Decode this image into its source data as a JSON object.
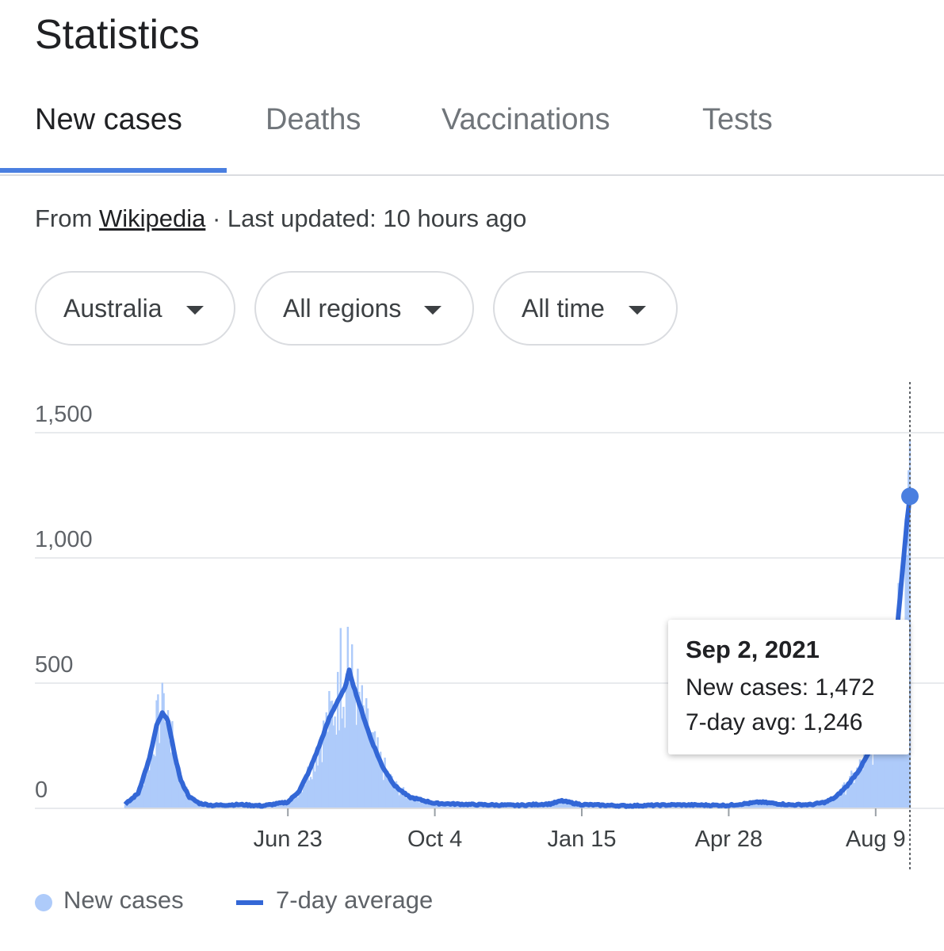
{
  "page": {
    "title": "Statistics"
  },
  "tabs": [
    {
      "label": "New cases",
      "active": true
    },
    {
      "label": "Deaths",
      "active": false
    },
    {
      "label": "Vaccinations",
      "active": false
    },
    {
      "label": "Tests",
      "active": false
    }
  ],
  "source": {
    "prefix": "From",
    "link": "Wikipedia",
    "updated": "· Last updated: 10 hours ago"
  },
  "filters": {
    "country": "Australia",
    "region": "All regions",
    "time": "All time"
  },
  "tooltip": {
    "date": "Sep 2, 2021",
    "new_cases": "New cases: 1,472",
    "avg": "7-day avg: 1,246"
  },
  "legend": {
    "bars": "New cases",
    "line": "7-day average"
  },
  "colors": {
    "accent": "#4a7fe0",
    "bars": "#aecbfa",
    "line": "#3367d6"
  },
  "chart_data": {
    "type": "bar",
    "yticks": [
      "0",
      "500",
      "1,000",
      "1,500"
    ],
    "ylim": [
      0,
      1750
    ],
    "xticks": [
      {
        "label": "Jun 23",
        "date": "2020-06-23"
      },
      {
        "label": "Oct 4",
        "date": "2020-10-04"
      },
      {
        "label": "Jan 15",
        "date": "2021-01-15"
      },
      {
        "label": "Apr 28",
        "date": "2021-04-28"
      },
      {
        "label": "Aug 9",
        "date": "2021-08-09"
      }
    ],
    "x_range": [
      "2020-03-01",
      "2021-09-02"
    ],
    "grid": true,
    "legend_position": "bottom-left",
    "series": [
      {
        "name": "New cases",
        "kind": "bar"
      },
      {
        "name": "7-day average",
        "kind": "line"
      }
    ],
    "seven_day_avg_points": [
      [
        "2020-03-01",
        15
      ],
      [
        "2020-03-10",
        60
      ],
      [
        "2020-03-18",
        200
      ],
      [
        "2020-03-23",
        330
      ],
      [
        "2020-03-27",
        380
      ],
      [
        "2020-03-31",
        350
      ],
      [
        "2020-04-04",
        230
      ],
      [
        "2020-04-09",
        110
      ],
      [
        "2020-04-15",
        45
      ],
      [
        "2020-04-22",
        20
      ],
      [
        "2020-05-01",
        12
      ],
      [
        "2020-05-20",
        15
      ],
      [
        "2020-06-05",
        10
      ],
      [
        "2020-06-15",
        18
      ],
      [
        "2020-06-23",
        25
      ],
      [
        "2020-07-01",
        70
      ],
      [
        "2020-07-08",
        150
      ],
      [
        "2020-07-15",
        250
      ],
      [
        "2020-07-22",
        360
      ],
      [
        "2020-07-28",
        430
      ],
      [
        "2020-08-02",
        480
      ],
      [
        "2020-08-05",
        550
      ],
      [
        "2020-08-08",
        490
      ],
      [
        "2020-08-13",
        400
      ],
      [
        "2020-08-20",
        280
      ],
      [
        "2020-08-28",
        170
      ],
      [
        "2020-09-06",
        90
      ],
      [
        "2020-09-16",
        45
      ],
      [
        "2020-10-04",
        20
      ],
      [
        "2020-11-01",
        15
      ],
      [
        "2020-12-01",
        12
      ],
      [
        "2020-12-24",
        18
      ],
      [
        "2021-01-01",
        30
      ],
      [
        "2021-01-08",
        22
      ],
      [
        "2021-01-15",
        15
      ],
      [
        "2021-02-15",
        10
      ],
      [
        "2021-03-20",
        14
      ],
      [
        "2021-04-28",
        12
      ],
      [
        "2021-05-20",
        25
      ],
      [
        "2021-06-10",
        14
      ],
      [
        "2021-06-25",
        15
      ],
      [
        "2021-07-05",
        25
      ],
      [
        "2021-07-12",
        45
      ],
      [
        "2021-07-20",
        90
      ],
      [
        "2021-07-28",
        150
      ],
      [
        "2021-08-05",
        230
      ],
      [
        "2021-08-12",
        320
      ],
      [
        "2021-08-18",
        450
      ],
      [
        "2021-08-23",
        650
      ],
      [
        "2021-08-27",
        900
      ],
      [
        "2021-08-31",
        1150
      ],
      [
        "2021-09-02",
        1246
      ]
    ],
    "new_cases_peaks": [
      [
        "2020-03-28",
        460
      ],
      [
        "2020-07-24",
        430
      ],
      [
        "2020-07-30",
        720
      ],
      [
        "2020-08-04",
        725
      ],
      [
        "2021-08-25",
        900
      ],
      [
        "2021-09-01",
        1350
      ],
      [
        "2021-09-02",
        1472
      ]
    ],
    "highlight": {
      "date": "2021-09-02",
      "value": 1246
    }
  }
}
